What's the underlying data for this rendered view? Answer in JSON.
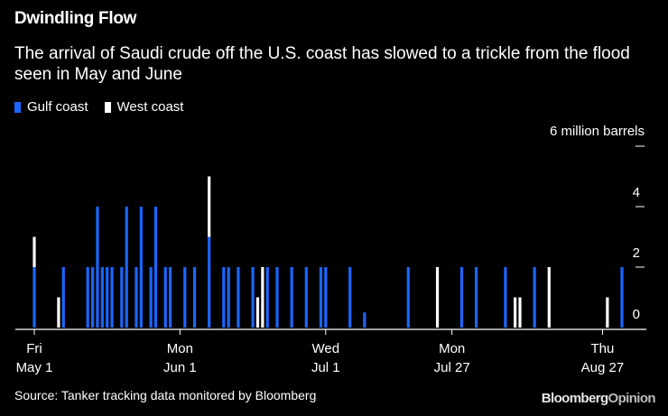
{
  "title": "Dwindling Flow",
  "subtitle": "The arrival of Saudi crude off the U.S. coast has slowed to a trickle from the flood seen in May and June",
  "source": "Source: Tanker tracking data monitored by Bloomberg",
  "brand": {
    "name": "Bloomberg",
    "suffix": "Opinion"
  },
  "colors": {
    "background": "#000000",
    "gulf": "#1a66ff",
    "west": "#ffffff",
    "axis": "#ffffff"
  },
  "chart_data": {
    "type": "bar",
    "stacked": true,
    "unit_label": "6 million barrels",
    "ylim": [
      0,
      6
    ],
    "yticks": [
      {
        "value": 0,
        "label": "0"
      },
      {
        "value": 2,
        "label": "2"
      },
      {
        "value": 4,
        "label": "4"
      },
      {
        "value": 6,
        "label": ""
      }
    ],
    "xlim": [
      0,
      120
    ],
    "xticks": [
      {
        "pos": 1,
        "line1": "Fri",
        "line2": "May 1"
      },
      {
        "pos": 31,
        "line1": "Mon",
        "line2": "Jun 1"
      },
      {
        "pos": 61,
        "line1": "Wed",
        "line2": "Jul 1"
      },
      {
        "pos": 87,
        "line1": "Mon",
        "line2": "Jul 27"
      },
      {
        "pos": 118,
        "line1": "Thu",
        "line2": "Aug 27"
      }
    ],
    "legend": [
      {
        "name": "Gulf coast",
        "color": "#1a66ff"
      },
      {
        "name": "West coast",
        "color": "#ffffff"
      }
    ],
    "series": [
      {
        "name": "Gulf coast",
        "color": "#1a66ff",
        "points": [
          {
            "day": 1,
            "value": 2
          },
          {
            "day": 7,
            "value": 2
          },
          {
            "day": 12,
            "value": 2
          },
          {
            "day": 13,
            "value": 2
          },
          {
            "day": 14,
            "value": 4
          },
          {
            "day": 15,
            "value": 2
          },
          {
            "day": 16,
            "value": 2
          },
          {
            "day": 17,
            "value": 2
          },
          {
            "day": 19,
            "value": 2
          },
          {
            "day": 20,
            "value": 4
          },
          {
            "day": 22,
            "value": 2
          },
          {
            "day": 23,
            "value": 4
          },
          {
            "day": 25,
            "value": 2
          },
          {
            "day": 26,
            "value": 4
          },
          {
            "day": 28,
            "value": 2
          },
          {
            "day": 29,
            "value": 2
          },
          {
            "day": 32,
            "value": 2
          },
          {
            "day": 34,
            "value": 2
          },
          {
            "day": 37,
            "value": 3
          },
          {
            "day": 40,
            "value": 2
          },
          {
            "day": 41,
            "value": 2
          },
          {
            "day": 43,
            "value": 2
          },
          {
            "day": 46,
            "value": 2
          },
          {
            "day": 49,
            "value": 2
          },
          {
            "day": 51,
            "value": 2
          },
          {
            "day": 54,
            "value": 2
          },
          {
            "day": 57,
            "value": 2
          },
          {
            "day": 60,
            "value": 2
          },
          {
            "day": 61,
            "value": 2
          },
          {
            "day": 66,
            "value": 2
          },
          {
            "day": 69,
            "value": 0.5
          },
          {
            "day": 78,
            "value": 2
          },
          {
            "day": 89,
            "value": 2
          },
          {
            "day": 92,
            "value": 2
          },
          {
            "day": 98,
            "value": 2
          },
          {
            "day": 104,
            "value": 2
          },
          {
            "day": 122,
            "value": 2
          }
        ]
      },
      {
        "name": "West coast",
        "color": "#ffffff",
        "points": [
          {
            "day": 1,
            "value": 1
          },
          {
            "day": 6,
            "value": 1
          },
          {
            "day": 37,
            "value": 2
          },
          {
            "day": 47,
            "value": 1
          },
          {
            "day": 48,
            "value": 2
          },
          {
            "day": 84,
            "value": 2
          },
          {
            "day": 100,
            "value": 1
          },
          {
            "day": 101,
            "value": 1
          },
          {
            "day": 107,
            "value": 2
          },
          {
            "day": 119,
            "value": 1
          }
        ]
      }
    ]
  }
}
